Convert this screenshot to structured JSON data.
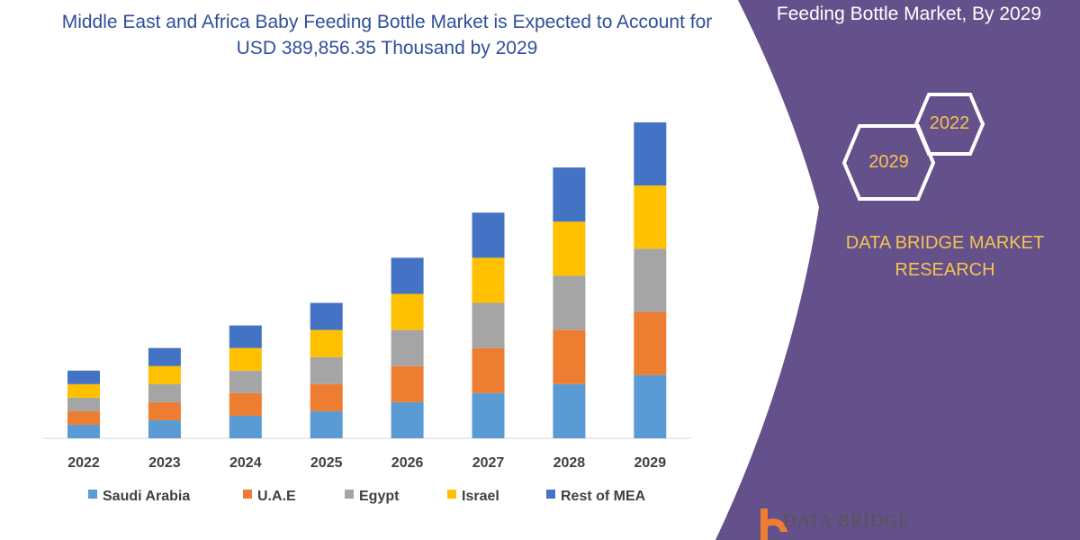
{
  "title": "Middle East and Africa Baby Feeding Bottle Market is Expected to Account for USD 389,856.35 Thousand by 2029",
  "side_panel": {
    "title": "Feeding Bottle Market, By 2029",
    "hex_years": [
      "2022",
      "2029"
    ],
    "brand": "DATA BRIDGE MARKET RESEARCH",
    "logo_text": "DATA BRIDGE",
    "color": "#64508a"
  },
  "chart_data": {
    "type": "bar",
    "stacked": true,
    "categories": [
      "2022",
      "2023",
      "2024",
      "2025",
      "2026",
      "2027",
      "2028",
      "2029"
    ],
    "series": [
      {
        "name": "Saudi Arabia",
        "color": "#5b9bd5",
        "values": [
          15,
          20,
          25,
          30,
          40,
          50,
          60,
          70
        ]
      },
      {
        "name": "U.A.E",
        "color": "#ed7d31",
        "values": [
          15,
          20,
          25,
          30,
          40,
          50,
          60,
          70
        ]
      },
      {
        "name": "Egypt",
        "color": "#a5a5a5",
        "values": [
          15,
          20,
          25,
          30,
          40,
          50,
          60,
          70
        ]
      },
      {
        "name": "Israel",
        "color": "#ffc000",
        "values": [
          15,
          20,
          25,
          30,
          40,
          50,
          60,
          70
        ]
      },
      {
        "name": "Rest of MEA",
        "color": "#4472c4",
        "values": [
          15,
          20,
          25,
          30,
          40,
          50,
          60,
          70
        ]
      }
    ],
    "legend": "bottom",
    "grid": false
  }
}
